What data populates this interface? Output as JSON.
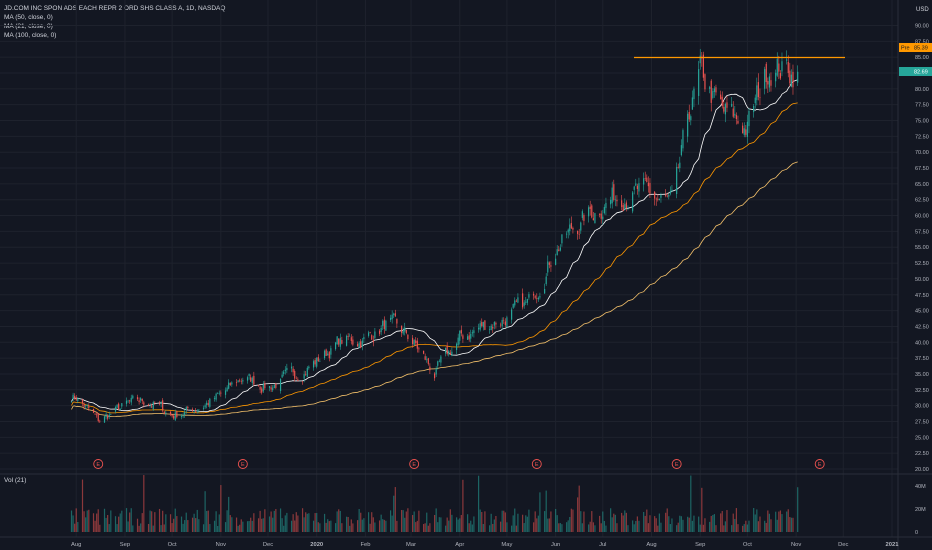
{
  "header": {
    "symbol_title": "JD.COM INC SPON ADS EACH REPR 2 ORD SHS CLASS A, 1D, NASDAQ",
    "indicators": [
      "MA (50, close, 0)",
      "MA (21, close, 0)",
      "MA (100, close, 0)"
    ],
    "volume_title": "Vol (21)"
  },
  "axis": {
    "currency": "USD",
    "y_ticks": [
      "90.00",
      "87.50",
      "85.00",
      "82.50",
      "80.00",
      "77.50",
      "75.00",
      "72.50",
      "70.00",
      "67.50",
      "65.00",
      "62.50",
      "60.00",
      "57.50",
      "55.00",
      "52.50",
      "50.00",
      "47.50",
      "45.00",
      "42.50",
      "40.00",
      "37.50",
      "35.00",
      "32.50",
      "30.00",
      "27.50",
      "25.00",
      "22.50",
      "20.00"
    ],
    "vol_ticks": [
      "40M",
      "20M",
      "0"
    ],
    "x_ticks": [
      "Aug",
      "Sep",
      "Oct",
      "Nov",
      "Dec",
      "2020",
      "Feb",
      "Mar",
      "Apr",
      "May",
      "Jun",
      "Jul",
      "Aug",
      "Sep",
      "Oct",
      "Nov",
      "Dec",
      "2021"
    ],
    "price_tag": "85.39",
    "price_tag_prefix": "Pre",
    "last_tag": "82.69"
  },
  "earnings_marker": "E",
  "colors": {
    "background": "#131722",
    "up": "#26a69a",
    "down": "#ef5350",
    "ma50": "#ff9800",
    "ma21": "#ffffff",
    "ma100": "#f5c26b",
    "resistance": "#ff9800"
  },
  "chart_data": {
    "type": "candlestick",
    "symbol": "JD",
    "interval": "1D",
    "ylim": [
      20,
      90
    ],
    "resistance_level": 85.39,
    "last_price": 82.69,
    "earnings_months": [
      "Aug 2019",
      "Nov 2019",
      "Mar 2020",
      "May 2020",
      "Aug 2020",
      "Nov 2020"
    ],
    "close_path": [
      [
        "2019-08-01",
        31.5
      ],
      [
        "2019-08-15",
        27.5
      ],
      [
        "2019-09-01",
        30.0
      ],
      [
        "2019-09-15",
        30.8
      ],
      [
        "2019-10-01",
        28.5
      ],
      [
        "2019-10-15",
        29.5
      ],
      [
        "2019-11-01",
        31.5
      ],
      [
        "2019-11-15",
        34.5
      ],
      [
        "2019-12-01",
        33.0
      ],
      [
        "2019-12-15",
        34.5
      ],
      [
        "2020-01-01",
        37.0
      ],
      [
        "2020-01-15",
        40.0
      ],
      [
        "2020-02-01",
        40.5
      ],
      [
        "2020-02-15",
        43.0
      ],
      [
        "2020-03-01",
        40.5
      ],
      [
        "2020-03-16",
        35.0
      ],
      [
        "2020-04-01",
        40.5
      ],
      [
        "2020-04-15",
        42.5
      ],
      [
        "2020-05-01",
        44.0
      ],
      [
        "2020-05-15",
        46.0
      ],
      [
        "2020-06-01",
        55.0
      ],
      [
        "2020-06-15",
        58.5
      ],
      [
        "2020-07-01",
        62.0
      ],
      [
        "2020-07-15",
        64.0
      ],
      [
        "2020-08-01",
        63.0
      ],
      [
        "2020-08-15",
        61.5
      ],
      [
        "2020-08-25",
        76.0
      ],
      [
        "2020-09-01",
        82.0
      ],
      [
        "2020-09-15",
        76.0
      ],
      [
        "2020-10-01",
        74.0
      ],
      [
        "2020-10-15",
        84.0
      ],
      [
        "2020-11-01",
        82.7
      ]
    ]
  }
}
